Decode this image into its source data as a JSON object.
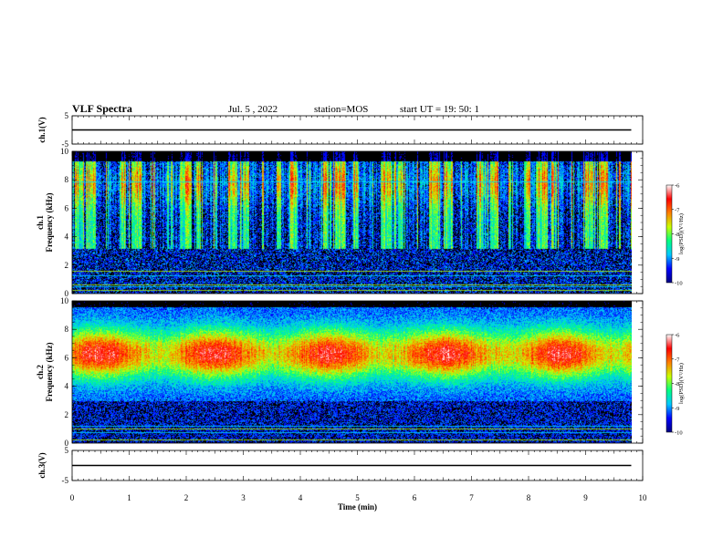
{
  "header": {
    "title": "VLF Spectra",
    "date": "Jul. 5 , 2022",
    "station": "station=MOS",
    "start": "start UT = 19: 50: 1"
  },
  "chart_data": [
    {
      "type": "line",
      "name": "ch1-waveform",
      "ylabel": "ch.1(V)",
      "ylim": [
        -5,
        5
      ],
      "yticks": [
        "5",
        "-5"
      ],
      "x": [
        0,
        9.8
      ],
      "values": [
        0,
        0
      ]
    },
    {
      "type": "heatmap",
      "name": "ch1-spectrogram",
      "ylabel_line1": "ch.1",
      "ylabel_line2": "Frequency (kHz)",
      "ylim": [
        0,
        10
      ],
      "yticks": [
        "0",
        "2",
        "4",
        "6",
        "8",
        "10"
      ],
      "xlim": [
        0,
        9.8
      ],
      "colorbar": {
        "label": "log(PSD)(V²/Hz)",
        "ticks": [
          "-6",
          "-7",
          "-8",
          "-9",
          "-10"
        ],
        "range": [
          -10,
          -6
        ]
      }
    },
    {
      "type": "heatmap",
      "name": "ch2-spectrogram",
      "ylabel_line1": "ch.2",
      "ylabel_line2": "Frequency (kHz)",
      "ylim": [
        0,
        10
      ],
      "yticks": [
        "0",
        "2",
        "4",
        "6",
        "8",
        "10"
      ],
      "xlim": [
        0,
        9.8
      ],
      "colorbar": {
        "label": "log(PSD)(V²/Hz)",
        "ticks": [
          "-6",
          "-7",
          "-8",
          "-9",
          "-10"
        ],
        "range": [
          -10,
          -6
        ]
      }
    },
    {
      "type": "line",
      "name": "ch3-waveform",
      "ylabel": "ch.3(V)",
      "ylim": [
        -5,
        5
      ],
      "yticks": [
        "5",
        "-5"
      ],
      "x": [
        0,
        9.8
      ],
      "values": [
        0,
        0
      ]
    }
  ],
  "xaxis": {
    "label": "Time (min)",
    "range": [
      0,
      10
    ],
    "ticks": [
      "0",
      "1",
      "2",
      "3",
      "4",
      "5",
      "6",
      "7",
      "8",
      "9",
      "10"
    ]
  },
  "colors": {
    "background": "#000000",
    "colormap": [
      "#000080",
      "#0000ff",
      "#00c8ff",
      "#00ff80",
      "#c8ff00",
      "#ff8000",
      "#ff0000",
      "#ffffff"
    ]
  }
}
